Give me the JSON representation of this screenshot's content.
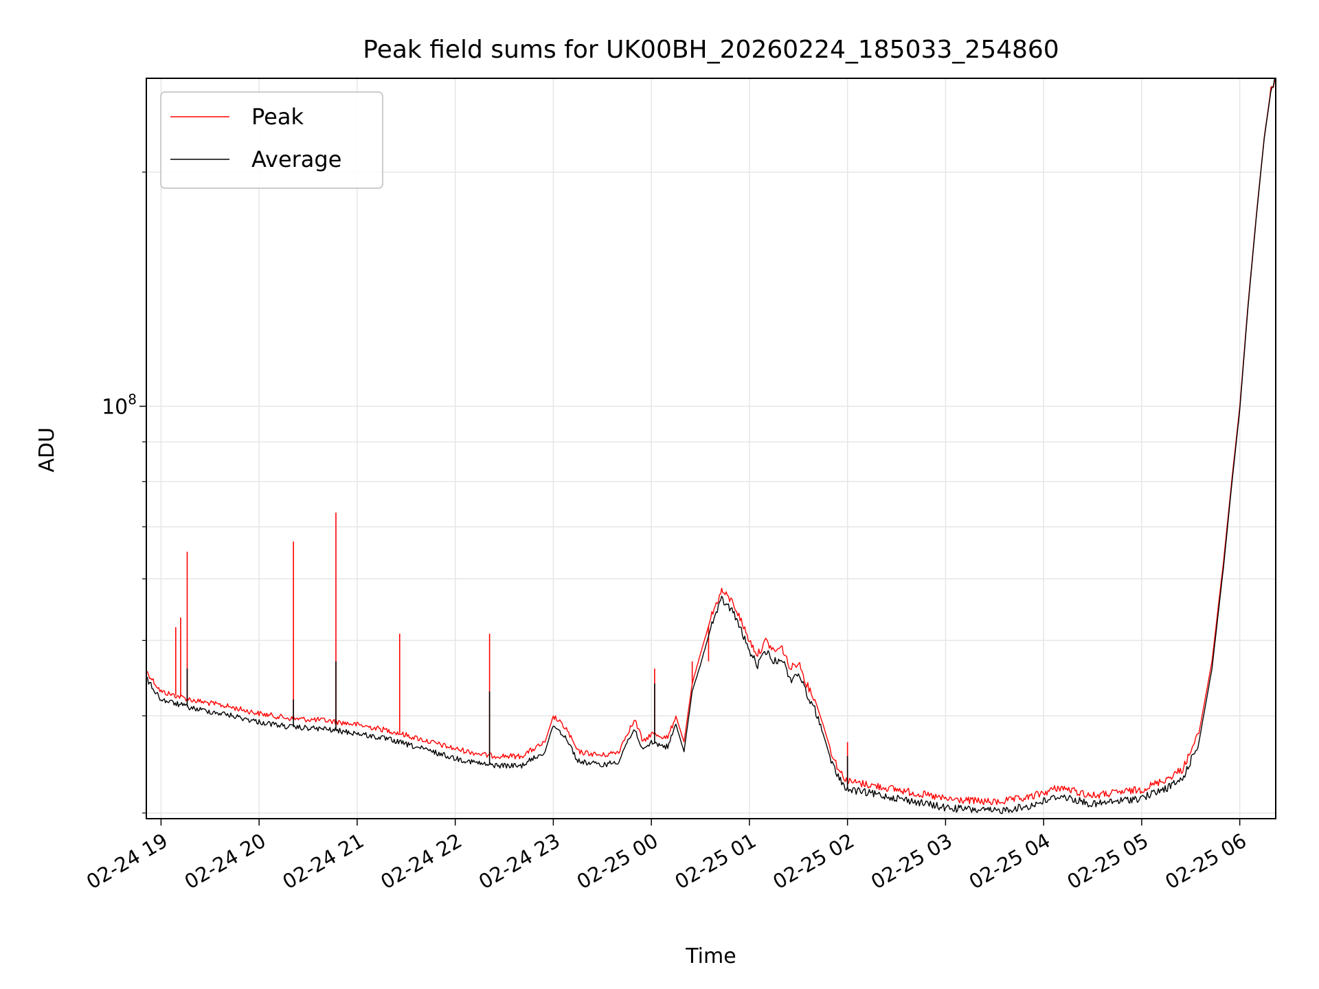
{
  "chart_data": {
    "type": "line",
    "title": "Peak field sums for UK00BH_20260224_185033_254860",
    "xlabel": "Time",
    "ylabel": "ADU",
    "y_scale": "log",
    "grid": true,
    "grid_color": "#e6e6e6",
    "legend_position": "top-left",
    "x_tick_labels": [
      "02-24 19",
      "02-24 20",
      "02-24 21",
      "02-24 22",
      "02-24 23",
      "02-25 00",
      "02-25 01",
      "02-25 02",
      "02-25 03",
      "02-25 04",
      "02-25 05",
      "02-25 06"
    ],
    "x_ticks": [
      "2026-02-24T19:00",
      "2026-02-24T20:00",
      "2026-02-24T21:00",
      "2026-02-24T22:00",
      "2026-02-24T23:00",
      "2026-02-25T00:00",
      "2026-02-25T01:00",
      "2026-02-25T02:00",
      "2026-02-25T03:00",
      "2026-02-25T04:00",
      "2026-02-25T05:00",
      "2026-02-25T06:00"
    ],
    "xlim": [
      "2026-02-24T18:51",
      "2026-02-25T06:22"
    ],
    "y_major_tick": {
      "value": 100000000,
      "label_base": "10",
      "label_exp": "8"
    },
    "y_minor_ticks": [
      30000000,
      40000000,
      50000000,
      60000000,
      70000000,
      80000000,
      90000000,
      200000000
    ],
    "ylim": [
      29500000,
      264000000
    ],
    "series": [
      {
        "name": "Peak",
        "color": "#ff0000",
        "points": [
          [
            "2026-02-24T18:51",
            45700000
          ],
          [
            "2026-02-24T19:00",
            43000000
          ],
          [
            "2026-02-24T19:20",
            41900000
          ],
          [
            "2026-02-24T19:40",
            41200000
          ],
          [
            "2026-02-24T20:00",
            40300000
          ],
          [
            "2026-02-24T20:20",
            39700000
          ],
          [
            "2026-02-24T20:40",
            39500000
          ],
          [
            "2026-02-24T21:00",
            39000000
          ],
          [
            "2026-02-24T21:20",
            38300000
          ],
          [
            "2026-02-24T21:40",
            37300000
          ],
          [
            "2026-02-24T22:00",
            36300000
          ],
          [
            "2026-02-24T22:20",
            35600000
          ],
          [
            "2026-02-24T22:40",
            35500000
          ],
          [
            "2026-02-24T22:55",
            37000000
          ],
          [
            "2026-02-24T23:00",
            40000000
          ],
          [
            "2026-02-24T23:08",
            38500000
          ],
          [
            "2026-02-24T23:15",
            36000000
          ],
          [
            "2026-02-24T23:30",
            35600000
          ],
          [
            "2026-02-24T23:40",
            36000000
          ],
          [
            "2026-02-24T23:45",
            38000000
          ],
          [
            "2026-02-24T23:50",
            39500000
          ],
          [
            "2026-02-24T23:55",
            37000000
          ],
          [
            "2026-02-25T00:00",
            38000000
          ],
          [
            "2026-02-25T00:10",
            37500000
          ],
          [
            "2026-02-25T00:15",
            40000000
          ],
          [
            "2026-02-25T00:20",
            37000000
          ],
          [
            "2026-02-25T00:25",
            44000000
          ],
          [
            "2026-02-25T00:30",
            48000000
          ],
          [
            "2026-02-25T00:37",
            54000000
          ],
          [
            "2026-02-25T00:43",
            58000000
          ],
          [
            "2026-02-25T00:50",
            56000000
          ],
          [
            "2026-02-25T00:55",
            53000000
          ],
          [
            "2026-02-25T01:00",
            50000000
          ],
          [
            "2026-02-25T01:05",
            48000000
          ],
          [
            "2026-02-25T01:10",
            50000000
          ],
          [
            "2026-02-25T01:15",
            48500000
          ],
          [
            "2026-02-25T01:20",
            49000000
          ],
          [
            "2026-02-25T01:25",
            46000000
          ],
          [
            "2026-02-25T01:30",
            47000000
          ],
          [
            "2026-02-25T01:35",
            44000000
          ],
          [
            "2026-02-25T01:40",
            42000000
          ],
          [
            "2026-02-25T01:45",
            39000000
          ],
          [
            "2026-02-25T01:50",
            36000000
          ],
          [
            "2026-02-25T01:55",
            34000000
          ],
          [
            "2026-02-25T02:00",
            33000000
          ],
          [
            "2026-02-25T02:30",
            32200000
          ],
          [
            "2026-02-25T03:00",
            31300000
          ],
          [
            "2026-02-25T03:30",
            31000000
          ],
          [
            "2026-02-25T03:50",
            31400000
          ],
          [
            "2026-02-25T04:10",
            32400000
          ],
          [
            "2026-02-25T04:30",
            31600000
          ],
          [
            "2026-02-25T05:00",
            32200000
          ],
          [
            "2026-02-25T05:15",
            33200000
          ],
          [
            "2026-02-25T05:25",
            34200000
          ],
          [
            "2026-02-25T05:35",
            38000000
          ],
          [
            "2026-02-25T05:43",
            47000000
          ],
          [
            "2026-02-25T05:50",
            63000000
          ],
          [
            "2026-02-25T05:55",
            80000000
          ],
          [
            "2026-02-25T06:00",
            100000000
          ],
          [
            "2026-02-25T06:05",
            135000000
          ],
          [
            "2026-02-25T06:10",
            175000000
          ],
          [
            "2026-02-25T06:15",
            222000000
          ],
          [
            "2026-02-25T06:19",
            255000000
          ],
          [
            "2026-02-25T06:22",
            264000000
          ]
        ],
        "spikes": [
          [
            "2026-02-24T19:09",
            52000000
          ],
          [
            "2026-02-24T19:12",
            53500000
          ],
          [
            "2026-02-24T19:16",
            65000000
          ],
          [
            "2026-02-24T20:21",
            67000000
          ],
          [
            "2026-02-24T20:47",
            73000000
          ],
          [
            "2026-02-24T21:26",
            51000000
          ],
          [
            "2026-02-24T22:21",
            51000000
          ],
          [
            "2026-02-25T00:02",
            46000000
          ],
          [
            "2026-02-25T00:25",
            47000000
          ],
          [
            "2026-02-25T00:35",
            47000000
          ],
          [
            "2026-02-25T02:00",
            37000000
          ]
        ]
      },
      {
        "name": "Average",
        "color": "#000000",
        "points": [
          [
            "2026-02-24T18:51",
            44700000
          ],
          [
            "2026-02-24T19:00",
            42000000
          ],
          [
            "2026-02-24T19:20",
            40900000
          ],
          [
            "2026-02-24T19:40",
            40200000
          ],
          [
            "2026-02-24T20:00",
            39300000
          ],
          [
            "2026-02-24T20:20",
            38700000
          ],
          [
            "2026-02-24T20:40",
            38500000
          ],
          [
            "2026-02-24T21:00",
            38000000
          ],
          [
            "2026-02-24T21:20",
            37300000
          ],
          [
            "2026-02-24T21:40",
            36300000
          ],
          [
            "2026-02-24T22:00",
            35300000
          ],
          [
            "2026-02-24T22:20",
            34600000
          ],
          [
            "2026-02-24T22:40",
            34500000
          ],
          [
            "2026-02-24T22:55",
            36000000
          ],
          [
            "2026-02-24T23:00",
            39000000
          ],
          [
            "2026-02-24T23:08",
            37500000
          ],
          [
            "2026-02-24T23:15",
            35000000
          ],
          [
            "2026-02-24T23:30",
            34600000
          ],
          [
            "2026-02-24T23:40",
            35000000
          ],
          [
            "2026-02-24T23:45",
            37000000
          ],
          [
            "2026-02-24T23:50",
            38500000
          ],
          [
            "2026-02-24T23:55",
            36000000
          ],
          [
            "2026-02-25T00:00",
            37000000
          ],
          [
            "2026-02-25T00:10",
            36500000
          ],
          [
            "2026-02-25T00:15",
            39000000
          ],
          [
            "2026-02-25T00:20",
            36000000
          ],
          [
            "2026-02-25T00:25",
            43000000
          ],
          [
            "2026-02-25T00:30",
            46500000
          ],
          [
            "2026-02-25T00:37",
            52500000
          ],
          [
            "2026-02-25T00:43",
            56500000
          ],
          [
            "2026-02-25T00:50",
            54500000
          ],
          [
            "2026-02-25T00:55",
            51500000
          ],
          [
            "2026-02-25T01:00",
            48500000
          ],
          [
            "2026-02-25T01:05",
            46500000
          ],
          [
            "2026-02-25T01:10",
            48500000
          ],
          [
            "2026-02-25T01:15",
            47000000
          ],
          [
            "2026-02-25T01:20",
            47500000
          ],
          [
            "2026-02-25T01:25",
            44500000
          ],
          [
            "2026-02-25T01:30",
            45500000
          ],
          [
            "2026-02-25T01:35",
            42800000
          ],
          [
            "2026-02-25T01:40",
            40800000
          ],
          [
            "2026-02-25T01:45",
            38000000
          ],
          [
            "2026-02-25T01:50",
            35000000
          ],
          [
            "2026-02-25T01:55",
            33200000
          ],
          [
            "2026-02-25T02:00",
            32200000
          ],
          [
            "2026-02-25T02:30",
            31400000
          ],
          [
            "2026-02-25T03:00",
            30500000
          ],
          [
            "2026-02-25T03:30",
            30200000
          ],
          [
            "2026-02-25T03:50",
            30600000
          ],
          [
            "2026-02-25T04:10",
            31600000
          ],
          [
            "2026-02-25T04:30",
            30800000
          ],
          [
            "2026-02-25T05:00",
            31400000
          ],
          [
            "2026-02-25T05:15",
            32300000
          ],
          [
            "2026-02-25T05:25",
            33200000
          ],
          [
            "2026-02-25T05:35",
            37000000
          ],
          [
            "2026-02-25T05:43",
            46000000
          ],
          [
            "2026-02-25T05:50",
            62000000
          ],
          [
            "2026-02-25T05:55",
            79000000
          ],
          [
            "2026-02-25T06:00",
            99000000
          ],
          [
            "2026-02-25T06:05",
            134000000
          ],
          [
            "2026-02-25T06:10",
            174000000
          ],
          [
            "2026-02-25T06:15",
            221000000
          ],
          [
            "2026-02-25T06:19",
            254000000
          ],
          [
            "2026-02-25T06:22",
            264000000
          ]
        ],
        "spikes": [
          [
            "2026-02-24T19:16",
            46000000
          ],
          [
            "2026-02-24T20:21",
            42000000
          ],
          [
            "2026-02-24T20:47",
            47000000
          ],
          [
            "2026-02-24T22:21",
            43000000
          ],
          [
            "2026-02-25T00:02",
            44000000
          ],
          [
            "2026-02-25T02:00",
            35500000
          ]
        ]
      }
    ]
  }
}
